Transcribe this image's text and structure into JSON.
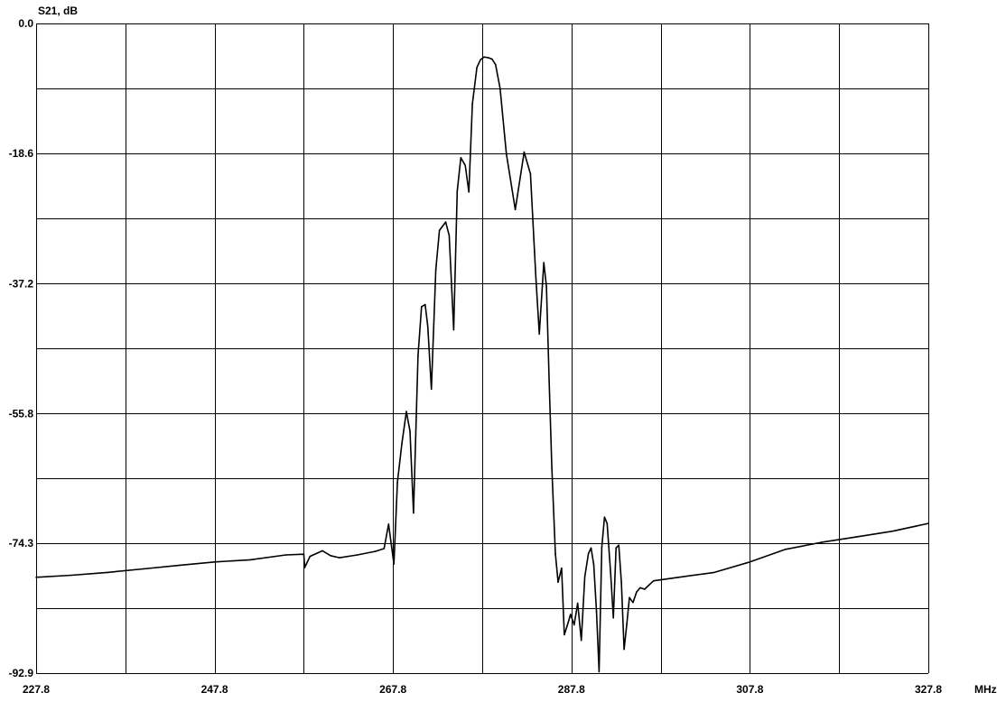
{
  "chart_data": {
    "type": "line",
    "title": "",
    "xlabel": "MHz",
    "ylabel": "S21, dB",
    "xlim": [
      227.8,
      327.8
    ],
    "ylim": [
      -92.9,
      0.0
    ],
    "grid": true,
    "x_ticks": [
      {
        "value": 227.8,
        "label": "227.8"
      },
      {
        "value": 247.8,
        "label": "247.8"
      },
      {
        "value": 267.8,
        "label": "267.8"
      },
      {
        "value": 287.8,
        "label": "287.8"
      },
      {
        "value": 307.8,
        "label": "307.8"
      },
      {
        "value": 327.8,
        "label": "327.8"
      }
    ],
    "y_ticks": [
      {
        "value": 0.0,
        "label": "0.0"
      },
      {
        "value": -18.6,
        "label": "-18.6"
      },
      {
        "value": -37.2,
        "label": "-37.2"
      },
      {
        "value": -55.8,
        "label": "-55.8"
      },
      {
        "value": -74.3,
        "label": "-74.3"
      },
      {
        "value": -92.9,
        "label": "-92.9"
      }
    ],
    "series": [
      {
        "color": "#000000",
        "x": [
          227.8,
          231.8,
          235.8,
          239.8,
          243.8,
          247.8,
          251.8,
          255.8,
          257.8,
          257.9,
          258.5,
          259.9,
          260.8,
          261.8,
          263.8,
          265.8,
          266.8,
          267.3,
          267.9,
          268.3,
          268.8,
          269.3,
          269.7,
          270.1,
          270.6,
          271.0,
          271.4,
          271.7,
          272.1,
          272.6,
          273.0,
          273.7,
          274.1,
          274.6,
          275.0,
          275.4,
          275.9,
          276.3,
          276.7,
          277.2,
          277.6,
          278.0,
          278.5,
          278.9,
          279.3,
          279.8,
          280.5,
          281.5,
          282.5,
          283.2,
          283.8,
          284.2,
          284.7,
          285.0,
          285.3,
          285.6,
          286.0,
          286.3,
          286.7,
          287.0,
          287.3,
          287.7,
          288.1,
          288.5,
          288.9,
          289.3,
          289.7,
          290.0,
          290.3,
          290.6,
          290.9,
          291.2,
          291.5,
          291.8,
          292.2,
          292.5,
          292.8,
          293.1,
          293.4,
          293.7,
          294.0,
          294.3,
          294.7,
          295.1,
          295.5,
          296.0,
          297.0,
          299.8,
          303.8,
          307.8,
          311.8,
          315.8,
          319.8,
          323.8,
          327.8
        ],
        "y": [
          -79.2,
          -78.9,
          -78.5,
          -78.0,
          -77.5,
          -77.0,
          -76.7,
          -76.0,
          -75.9,
          -77.8,
          -76.2,
          -75.4,
          -76.1,
          -76.4,
          -76.0,
          -75.5,
          -75.1,
          -71.6,
          -77.3,
          -65.6,
          -60.0,
          -55.5,
          -58.3,
          -70.0,
          -47.5,
          -40.5,
          -40.2,
          -43.3,
          -52.3,
          -35.2,
          -29.6,
          -28.4,
          -30.3,
          -43.8,
          -24.0,
          -19.2,
          -20.3,
          -24.1,
          -11.5,
          -6.3,
          -5.2,
          -4.8,
          -4.9,
          -5.1,
          -5.9,
          -9.3,
          -18.6,
          -26.6,
          -18.4,
          -21.5,
          -36.1,
          -44.4,
          -34.2,
          -37.6,
          -51.1,
          -63.6,
          -75.8,
          -79.9,
          -77.9,
          -87.4,
          -86.2,
          -84.5,
          -86.0,
          -82.9,
          -88.2,
          -79.1,
          -75.8,
          -75.0,
          -77.4,
          -84.0,
          -92.7,
          -74.9,
          -70.6,
          -71.5,
          -78.8,
          -85.0,
          -75.0,
          -74.6,
          -79.9,
          -89.5,
          -85.9,
          -82.1,
          -82.8,
          -81.3,
          -80.7,
          -80.9,
          -79.7,
          -79.2,
          -78.5,
          -77.0,
          -75.2,
          -74.2,
          -73.4,
          -72.6,
          -71.5
        ]
      }
    ]
  }
}
